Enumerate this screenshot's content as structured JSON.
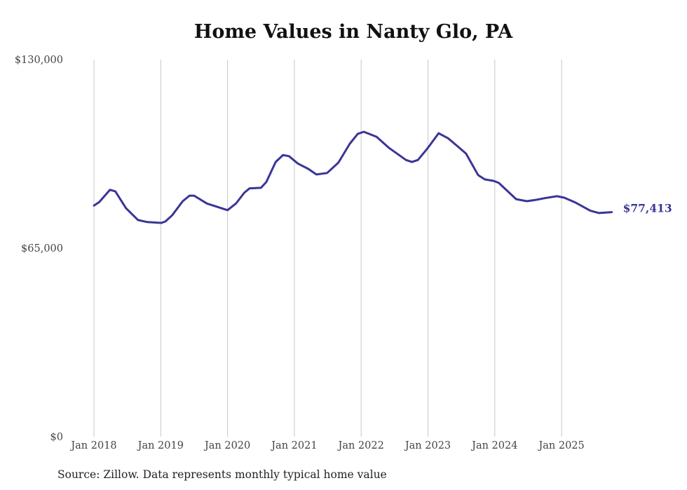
{
  "chart_data": {
    "type": "line",
    "title": "Home Values in Nanty Glo, PA",
    "xlabel": "",
    "ylabel": "",
    "source": "Source: Zillow. Data represents monthly typical home value",
    "ylim": [
      0,
      130000
    ],
    "xlim": [
      2018.0,
      2025.75
    ],
    "y_ticks": [
      {
        "value": 0,
        "label": "$0"
      },
      {
        "value": 65000,
        "label": "$65,000"
      },
      {
        "value": 130000,
        "label": "$130,000"
      }
    ],
    "x_ticks": [
      {
        "value": 2018,
        "label": "Jan 2018"
      },
      {
        "value": 2019,
        "label": "Jan 2019"
      },
      {
        "value": 2020,
        "label": "Jan 2020"
      },
      {
        "value": 2021,
        "label": "Jan 2021"
      },
      {
        "value": 2022,
        "label": "Jan 2022"
      },
      {
        "value": 2023,
        "label": "Jan 2023"
      },
      {
        "value": 2024,
        "label": "Jan 2024"
      },
      {
        "value": 2025,
        "label": "Jan 2025"
      }
    ],
    "grid": {
      "vertical": true,
      "horizontal": false
    },
    "series": [
      {
        "name": "Typical home value",
        "color": "#3a3596",
        "end_label": "$77,413",
        "x": [
          2018.0,
          2018.08,
          2018.24,
          2018.32,
          2018.48,
          2018.66,
          2018.8,
          2019.01,
          2019.07,
          2019.17,
          2019.33,
          2019.43,
          2019.5,
          2019.69,
          2020.0,
          2020.13,
          2020.25,
          2020.33,
          2020.5,
          2020.58,
          2020.72,
          2020.83,
          2020.92,
          2021.05,
          2021.21,
          2021.33,
          2021.49,
          2021.66,
          2021.83,
          2021.95,
          2022.04,
          2022.23,
          2022.42,
          2022.67,
          2022.76,
          2022.85,
          2022.99,
          2023.16,
          2023.3,
          2023.46,
          2023.57,
          2023.75,
          2023.85,
          2023.98,
          2024.06,
          2024.32,
          2024.48,
          2024.63,
          2024.74,
          2024.93,
          2025.04,
          2025.2,
          2025.43,
          2025.56,
          2025.75
        ],
        "values": [
          79700,
          80900,
          85100,
          84600,
          78800,
          74700,
          74000,
          73700,
          74200,
          76300,
          81200,
          83100,
          83100,
          80400,
          78100,
          80500,
          84100,
          85600,
          85800,
          87800,
          94700,
          97100,
          96700,
          94200,
          92300,
          90400,
          90900,
          94500,
          101000,
          104400,
          105100,
          103400,
          99500,
          95400,
          94700,
          95400,
          99300,
          104600,
          102900,
          99800,
          97600,
          90200,
          88700,
          88200,
          87500,
          81900,
          81200,
          81700,
          82200,
          82900,
          82400,
          80800,
          77900,
          77100,
          77413
        ]
      }
    ]
  }
}
